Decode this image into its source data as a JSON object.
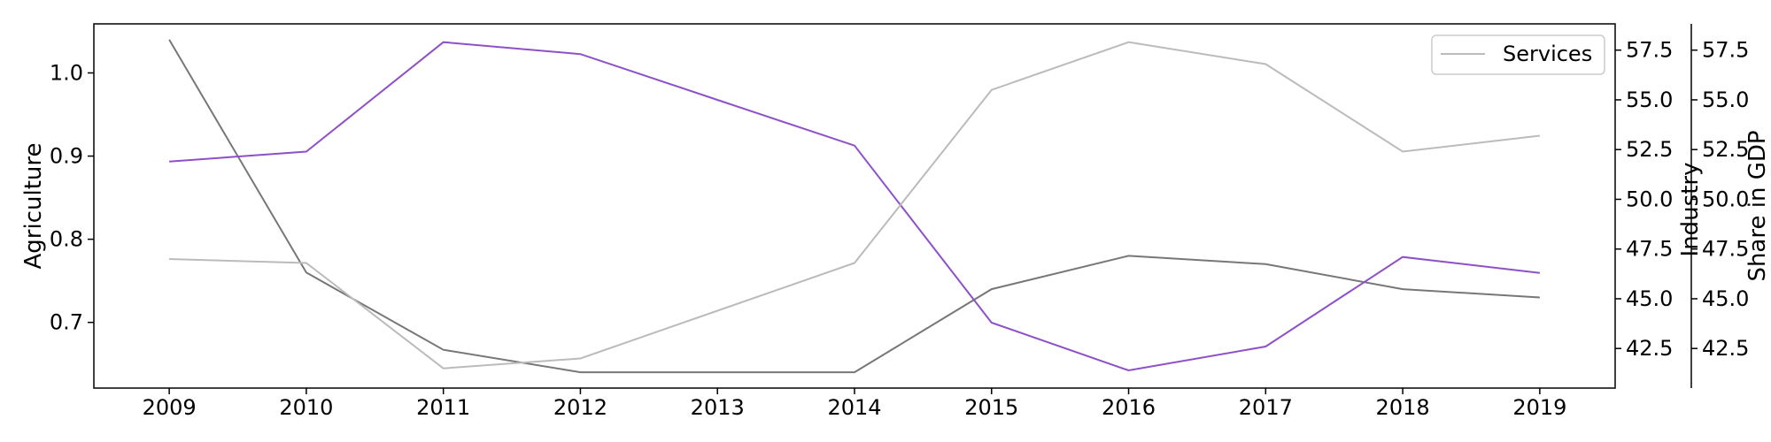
{
  "chart_data": {
    "type": "line",
    "x": [
      2009,
      2010,
      2011,
      2012,
      2013,
      2014,
      2015,
      2016,
      2017,
      2018,
      2019
    ],
    "series": [
      {
        "key": "agriculture",
        "values": [
          1.04,
          0.76,
          0.667,
          0.64,
          0.64,
          0.64,
          0.74,
          0.78,
          0.77,
          0.74,
          0.73
        ],
        "color": "#777777",
        "axis": "agriculture"
      },
      {
        "key": "industry",
        "values": [
          51.9,
          52.4,
          57.9,
          57.3,
          55.0,
          52.7,
          43.8,
          41.4,
          42.6,
          47.1,
          46.3
        ],
        "color": "#8e50c8",
        "axis": "industry"
      },
      {
        "key": "services",
        "name": "Services",
        "values": [
          47.0,
          46.8,
          41.5,
          42.0,
          44.4,
          46.8,
          55.5,
          57.9,
          56.8,
          52.4,
          53.2
        ],
        "color": "#bbbbbb",
        "axis": "share"
      }
    ],
    "axes": {
      "agriculture": {
        "label": "Agriculture",
        "range": [
          0.621,
          1.059
        ],
        "ticks": [
          "0.7",
          "0.8",
          "0.9",
          "1.0"
        ]
      },
      "industry": {
        "label": "Industry",
        "range": [
          40.51,
          58.82
        ],
        "ticks": [
          "42.5",
          "45.0",
          "47.5",
          "50.0",
          "52.5",
          "55.0",
          "57.5"
        ]
      },
      "share": {
        "label": "Share in GDP",
        "range": [
          40.51,
          58.82
        ],
        "ticks": [
          "42.5",
          "45.0",
          "47.5",
          "50.0",
          "52.5",
          "55.0",
          "57.5"
        ]
      }
    },
    "x_range": [
      2008.45,
      2019.55
    ],
    "legend": {
      "entries": [
        "Services"
      ],
      "placement": "top-right"
    },
    "grid": false
  }
}
